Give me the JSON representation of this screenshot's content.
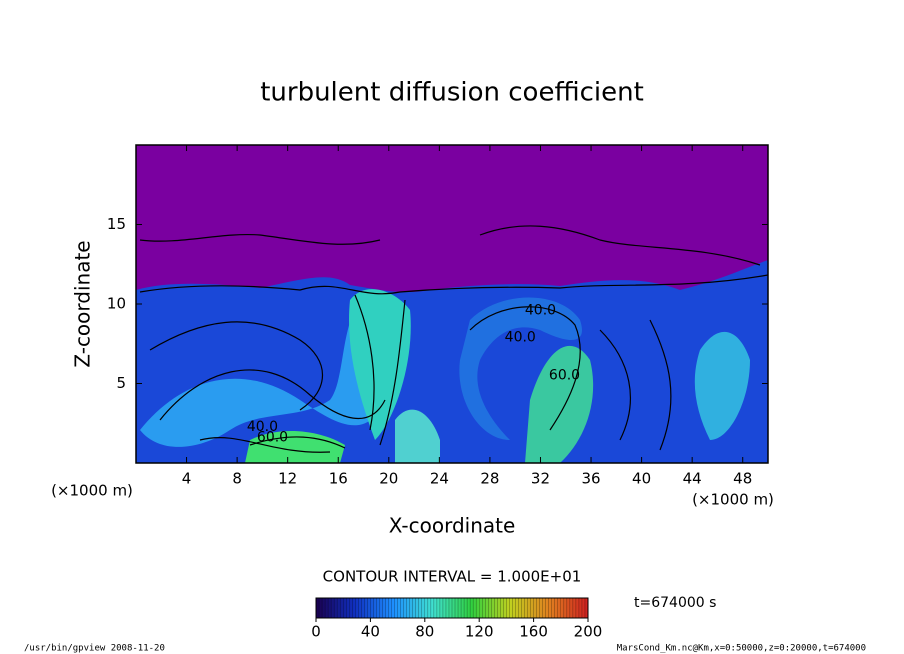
{
  "chart_data": {
    "type": "contour",
    "title": "turbulent diffusion coefficient",
    "x_label": "X-coordinate",
    "y_label": "Z-coordinate",
    "x_unit": "(×1000 m)",
    "y_unit": "(×1000 m)",
    "xlim": [
      0,
      50
    ],
    "xticks": [
      4,
      8,
      12,
      16,
      20,
      24,
      28,
      32,
      36,
      40,
      44,
      48
    ],
    "ylim": [
      0,
      20
    ],
    "yticks": [
      5,
      10,
      15
    ],
    "contour_interval_label": "CONTOUR INTERVAL = 1.000E+01",
    "time_label": "t=674000 s",
    "contour_labels": [
      {
        "text": "40.0",
        "x": 32,
        "y": 9.6
      },
      {
        "text": "40.0",
        "x": 30.4,
        "y": 7.9
      },
      {
        "text": "60.0",
        "x": 33.9,
        "y": 5.5
      },
      {
        "text": "40.0",
        "x": 10,
        "y": 2.25
      },
      {
        "text": "60.0",
        "x": 10.8,
        "y": 1.6
      }
    ],
    "colorbar": {
      "lim": [
        0,
        200
      ],
      "ticks": [
        0,
        40,
        80,
        120,
        160,
        200
      ],
      "colors": [
        "#1a0050",
        "#1030c0",
        "#1e90ff",
        "#40e0d0",
        "#30d040",
        "#c0d020",
        "#e08020",
        "#d02020"
      ]
    },
    "footer_left": "/usr/bin/gpview   2008-11-20",
    "footer_right": "MarsCond_Km.nc@Km,x=0:50000,z=0:20000,t=674000"
  }
}
